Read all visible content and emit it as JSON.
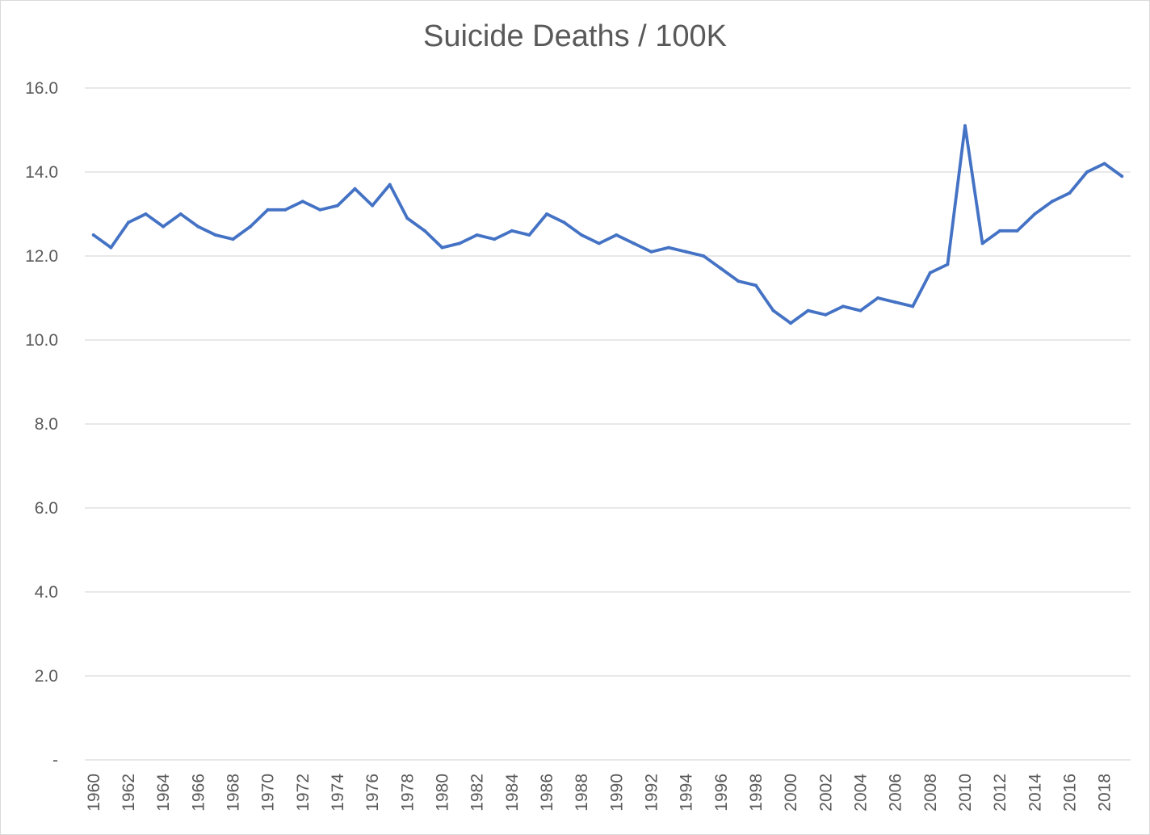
{
  "chart_data": {
    "type": "line",
    "title": "Suicide Deaths / 100K",
    "xlabel": "",
    "ylabel": "",
    "ylim": [
      0,
      16
    ],
    "y_ticks": [
      {
        "value": 0,
        "label": "-"
      },
      {
        "value": 2,
        "label": "2.0"
      },
      {
        "value": 4,
        "label": "4.0"
      },
      {
        "value": 6,
        "label": "6.0"
      },
      {
        "value": 8,
        "label": "8.0"
      },
      {
        "value": 10,
        "label": "10.0"
      },
      {
        "value": 12,
        "label": "12.0"
      },
      {
        "value": 14,
        "label": "14.0"
      },
      {
        "value": 16,
        "label": "16.0"
      }
    ],
    "x_tick_labels": [
      "1960",
      "1962",
      "1964",
      "1966",
      "1968",
      "1970",
      "1972",
      "1974",
      "1976",
      "1978",
      "1980",
      "1982",
      "1984",
      "1986",
      "1988",
      "1990",
      "1992",
      "1994",
      "1996",
      "1998",
      "2000",
      "2002",
      "2004",
      "2006",
      "2008",
      "2010",
      "2012",
      "2014",
      "2016",
      "2018"
    ],
    "grid": true,
    "legend": "none",
    "line_color": "#4472c4",
    "series": [
      {
        "x": [
          1960,
          1961,
          1962,
          1963,
          1964,
          1965,
          1966,
          1967,
          1968,
          1969,
          1970,
          1971,
          1972,
          1973,
          1974,
          1975,
          1976,
          1977,
          1978,
          1979,
          1980,
          1981,
          1982,
          1983,
          1984,
          1985,
          1986,
          1987,
          1988,
          1989,
          1990,
          1991,
          1992,
          1993,
          1994,
          1995,
          1996,
          1997,
          1998,
          1999,
          2000,
          2001,
          2002,
          2003,
          2004,
          2005,
          2006,
          2007,
          2008,
          2009,
          2010,
          2011,
          2012,
          2013,
          2014,
          2015,
          2016,
          2017,
          2018,
          2019
        ],
        "values": [
          12.5,
          12.2,
          12.8,
          13.0,
          12.7,
          13.0,
          12.7,
          12.5,
          12.4,
          12.7,
          13.1,
          13.1,
          13.3,
          13.1,
          13.2,
          13.6,
          13.2,
          13.7,
          12.9,
          12.6,
          12.2,
          12.3,
          12.5,
          12.4,
          12.6,
          12.5,
          13.0,
          12.8,
          12.5,
          12.3,
          12.5,
          12.3,
          12.1,
          12.2,
          12.1,
          12.0,
          11.7,
          11.4,
          11.3,
          10.7,
          10.4,
          10.7,
          10.6,
          10.8,
          10.7,
          11.0,
          10.9,
          10.8,
          11.6,
          11.8,
          15.1,
          12.3,
          12.6,
          12.6,
          13.0,
          13.3,
          13.5,
          14.0,
          14.2,
          13.9
        ]
      }
    ]
  }
}
